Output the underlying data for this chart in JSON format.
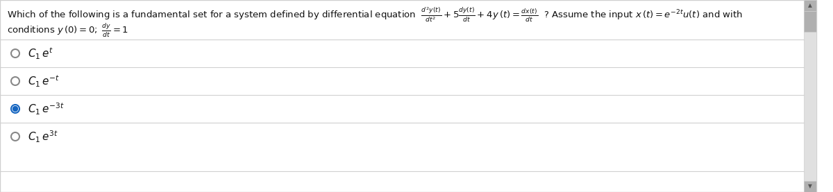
{
  "bg_color": "#ffffff",
  "border_color": "#d0d0d0",
  "question_line1": "Which of the following is a fundamental set for a system defined by differential equation  $\\frac{d^2y(t)}{dt^2} + 5\\frac{dy(t)}{dt} + 4y\\,(t) = \\frac{dx(t)}{dt}$  ? Assume the input $x\\,(t) = e^{-2t}u(t)$ and with",
  "question_line2": "conditions $y\\,(0) = 0;\\; \\frac{dy}{dt} = 1$",
  "options": [
    {
      "label": "$C_1\\,e^{t}$",
      "selected": false
    },
    {
      "label": "$C_1\\,e^{-t}$",
      "selected": false
    },
    {
      "label": "$C_1\\,e^{-3t}$",
      "selected": true
    },
    {
      "label": "$C_1\\,e^{3t}$",
      "selected": false
    }
  ],
  "selected_color": "#1565c0",
  "unselected_color": "#888888",
  "text_color": "#111111",
  "font_size": 9.5,
  "option_font_size": 11,
  "scrollbar_color": "#e0e0e0",
  "scrollbar_thumb": "#b0b0b0"
}
